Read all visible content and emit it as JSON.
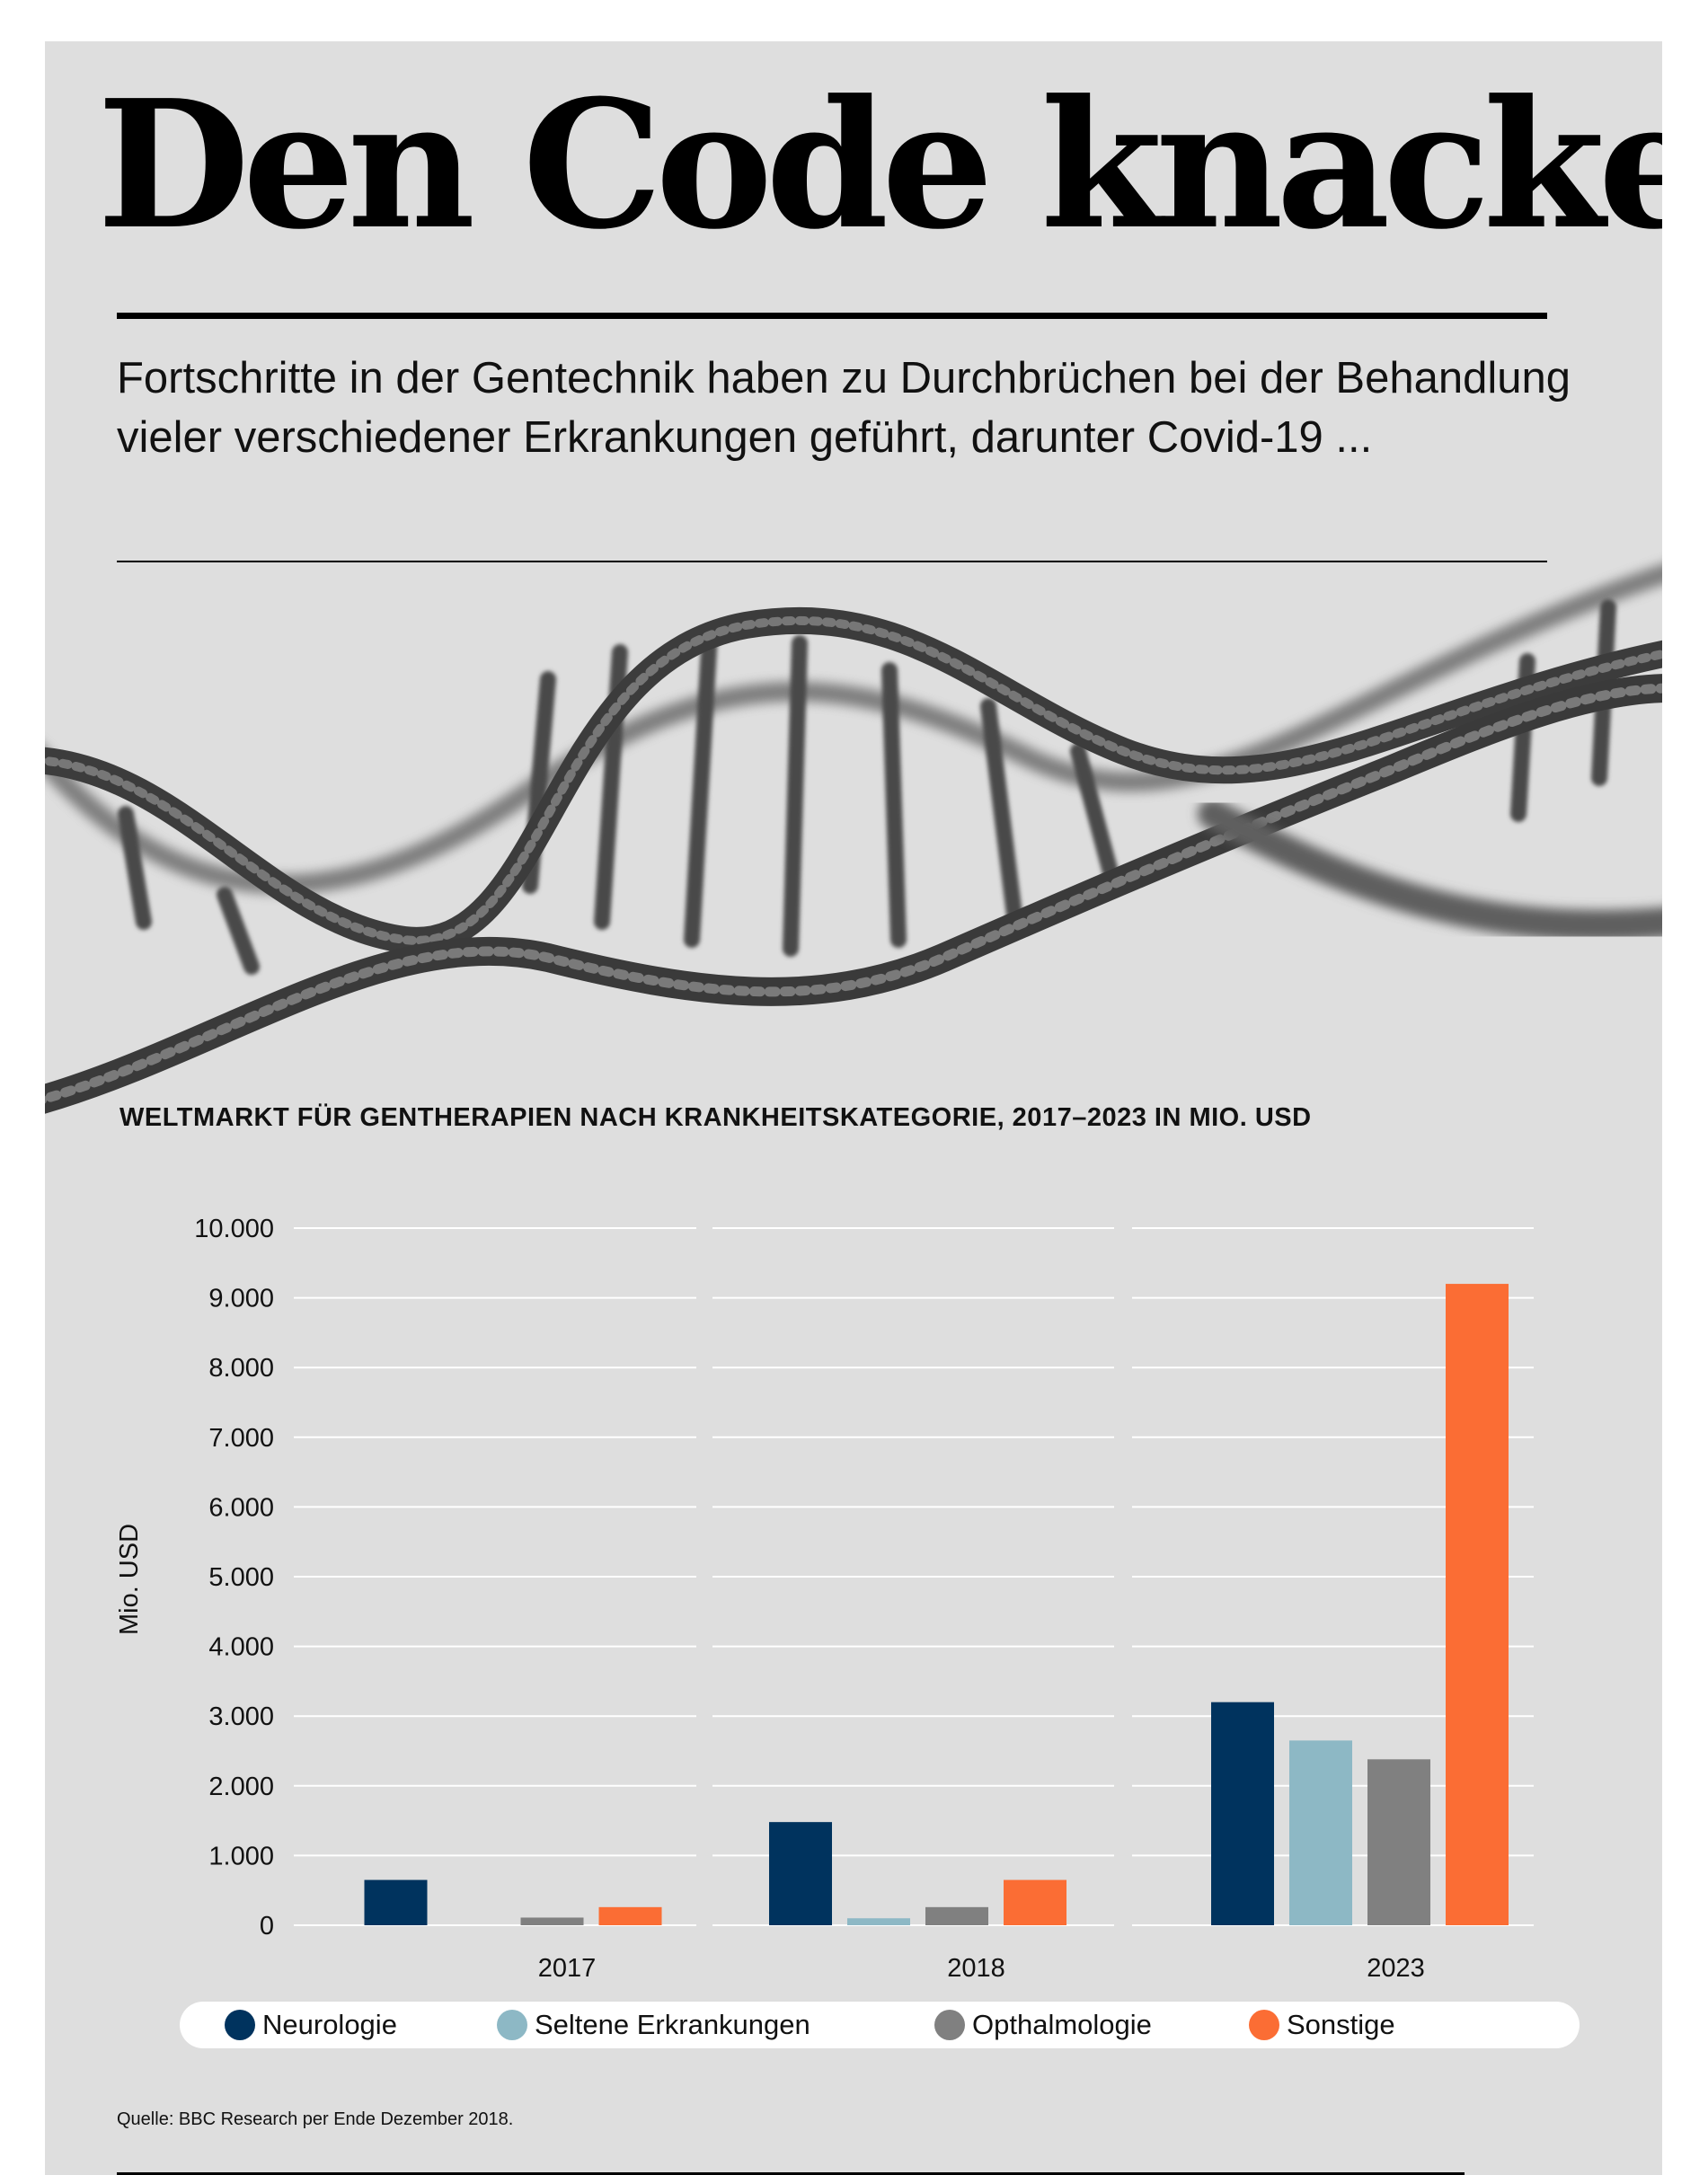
{
  "headline": "Den Code knacken",
  "intro": "Fortschritte in der Gentechnik haben zu Durchbrüchen bei der Behandlung vieler verschiedener Erkrankungen geführt, darunter Covid-19 ...",
  "source": "Quelle: BBC Research per Ende Dezember 2018.",
  "colors": {
    "background": "#dedede",
    "Neurologie": "#00335e",
    "Seltene Erkrankungen": "#8db8c5",
    "Opthalmologie": "#808080",
    "Sonstige": "#fb6d34"
  },
  "chart_data": {
    "type": "bar",
    "title": "WELTMARKT FÜR GENTHERAPIEN NACH KRANKHEITSKATEGORIE, 2017–2023 IN MIO. USD",
    "xlabel": "",
    "ylabel": "Mio. USD",
    "ylim": [
      0,
      10000
    ],
    "yticks": [
      0,
      1000,
      2000,
      3000,
      4000,
      5000,
      6000,
      7000,
      8000,
      9000,
      10000
    ],
    "ytick_labels": [
      "0",
      "1.000",
      "2.000",
      "3.000",
      "4.000",
      "5.000",
      "6.000",
      "7.000",
      "8.000",
      "9.000",
      "10.000"
    ],
    "categories": [
      "2017",
      "2018",
      "2023"
    ],
    "grid": true,
    "legend_position": "bottom",
    "series": [
      {
        "name": "Neurologie",
        "color": "#00335e",
        "values": [
          650,
          1480,
          3200
        ]
      },
      {
        "name": "Seltene Erkrankungen",
        "color": "#8db8c5",
        "values": [
          0,
          100,
          2650
        ]
      },
      {
        "name": "Opthalmologie",
        "color": "#808080",
        "values": [
          110,
          260,
          2380
        ]
      },
      {
        "name": "Sonstige",
        "color": "#fb6d34",
        "values": [
          260,
          650,
          9200
        ]
      }
    ]
  }
}
